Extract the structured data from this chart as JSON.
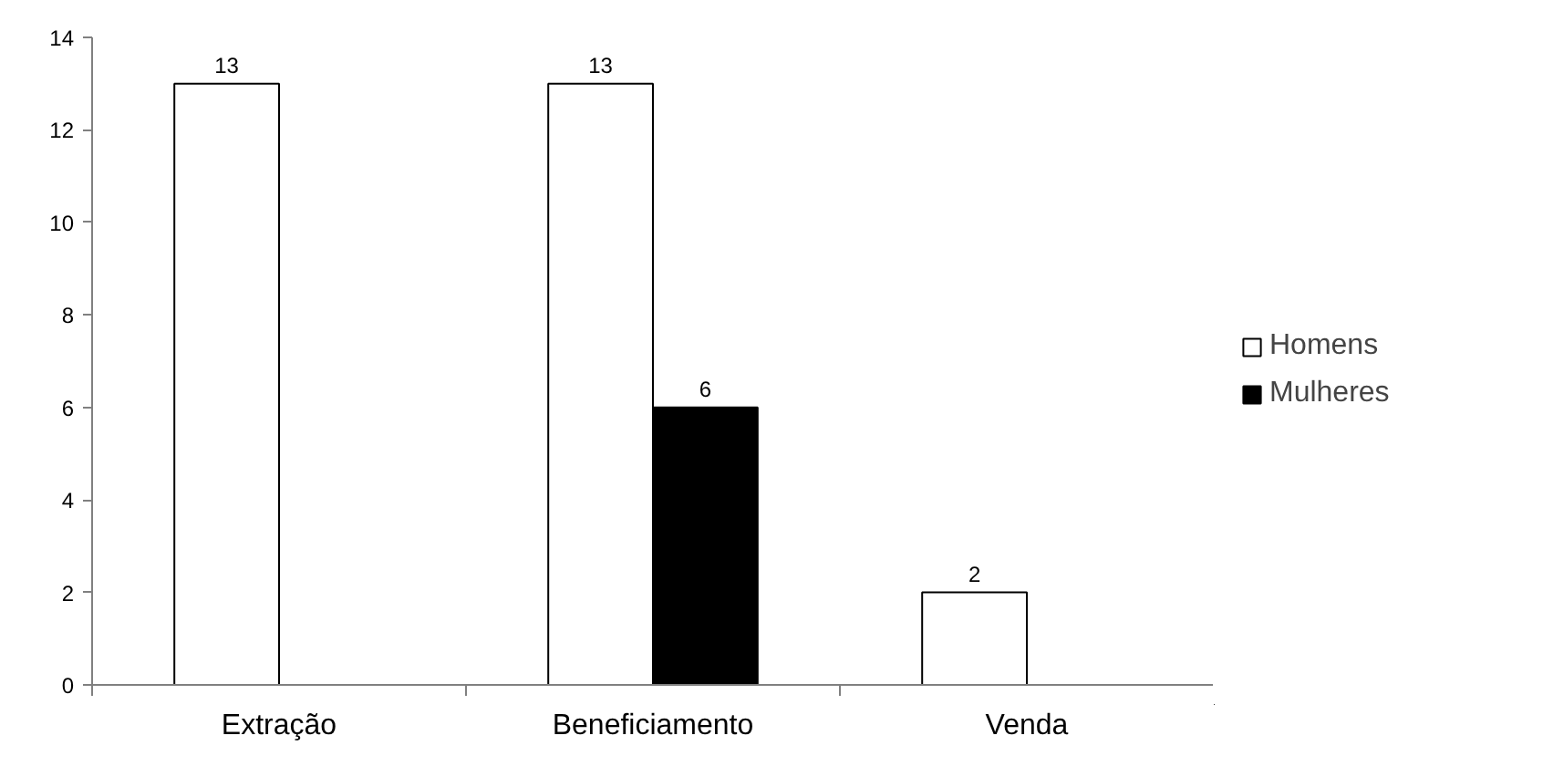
{
  "chart_data": {
    "type": "bar",
    "categories": [
      "Extração",
      "Beneficiamento",
      "Venda"
    ],
    "series": [
      {
        "name": "Homens",
        "color": "#ffffff",
        "values": [
          13,
          13,
          2
        ]
      },
      {
        "name": "Mulheres",
        "color": "#000000",
        "values": [
          null,
          6,
          null
        ]
      }
    ],
    "ylim": [
      0,
      14
    ],
    "yticks": [
      0,
      2,
      4,
      6,
      8,
      10,
      12,
      14
    ],
    "grid": false,
    "legend": "right",
    "data_labels": true
  }
}
